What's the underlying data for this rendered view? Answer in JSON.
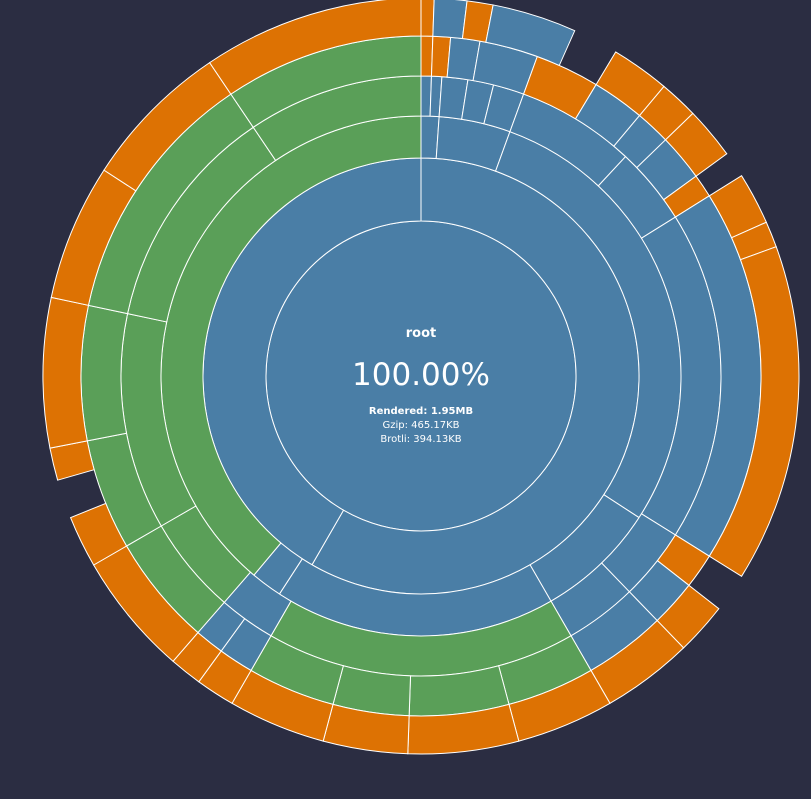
{
  "center": {
    "name": "root",
    "percentage": "100.00%",
    "rendered": "Rendered: 1.95MB",
    "gzip": "Gzip: 465.17KB",
    "brotli": "Brotli: 394.13KB"
  },
  "colors": {
    "background": "#2b2d42",
    "directory": "#4a7ea6",
    "module": "#5a9f58",
    "file": "#dd7203",
    "stroke": "#ffffff"
  },
  "chart_data": {
    "type": "sunburst",
    "unit_note": "angles in degrees clockwise from 12 o'clock",
    "ring_count": 6,
    "segments": [
      {
        "ring": 0,
        "start": 0,
        "end": 360,
        "kind": "directory"
      },
      {
        "ring": 1,
        "start": 0,
        "end": 210,
        "kind": "directory"
      },
      {
        "ring": 1,
        "start": 210,
        "end": 360,
        "kind": "directory"
      },
      {
        "ring": 2,
        "start": 0,
        "end": 4,
        "kind": "directory"
      },
      {
        "ring": 2,
        "start": 4,
        "end": 20,
        "kind": "directory"
      },
      {
        "ring": 2,
        "start": 20,
        "end": 123,
        "kind": "directory"
      },
      {
        "ring": 2,
        "start": 123,
        "end": 150,
        "kind": "directory"
      },
      {
        "ring": 2,
        "start": 150,
        "end": 213,
        "kind": "directory"
      },
      {
        "ring": 2,
        "start": 213,
        "end": 220,
        "kind": "directory"
      },
      {
        "ring": 2,
        "start": 220,
        "end": 360,
        "kind": "module"
      },
      {
        "ring": 3,
        "start": 0,
        "end": 2,
        "kind": "directory"
      },
      {
        "ring": 3,
        "start": 2,
        "end": 4,
        "kind": "directory"
      },
      {
        "ring": 3,
        "start": 4,
        "end": 9,
        "kind": "directory"
      },
      {
        "ring": 3,
        "start": 9,
        "end": 14,
        "kind": "directory"
      },
      {
        "ring": 3,
        "start": 14,
        "end": 20,
        "kind": "directory"
      },
      {
        "ring": 3,
        "start": 20,
        "end": 43,
        "kind": "directory"
      },
      {
        "ring": 3,
        "start": 43,
        "end": 58,
        "kind": "directory"
      },
      {
        "ring": 3,
        "start": 58,
        "end": 122,
        "kind": "directory"
      },
      {
        "ring": 3,
        "start": 122,
        "end": 136,
        "kind": "directory"
      },
      {
        "ring": 3,
        "start": 136,
        "end": 150,
        "kind": "directory"
      },
      {
        "ring": 3,
        "start": 150,
        "end": 210,
        "kind": "module"
      },
      {
        "ring": 3,
        "start": 210,
        "end": 221,
        "kind": "directory"
      },
      {
        "ring": 3,
        "start": 221,
        "end": 240,
        "kind": "module"
      },
      {
        "ring": 3,
        "start": 240,
        "end": 282,
        "kind": "module"
      },
      {
        "ring": 3,
        "start": 282,
        "end": 326,
        "kind": "module"
      },
      {
        "ring": 3,
        "start": 326,
        "end": 360,
        "kind": "module"
      },
      {
        "ring": 4,
        "start": 0,
        "end": 2,
        "kind": "file"
      },
      {
        "ring": 4,
        "start": 2,
        "end": 5,
        "kind": "file"
      },
      {
        "ring": 4,
        "start": 5,
        "end": 10,
        "kind": "directory"
      },
      {
        "ring": 4,
        "start": 10,
        "end": 20,
        "kind": "directory"
      },
      {
        "ring": 4,
        "start": 20,
        "end": 31,
        "kind": "file"
      },
      {
        "ring": 4,
        "start": 31,
        "end": 40,
        "kind": "directory"
      },
      {
        "ring": 4,
        "start": 40,
        "end": 46,
        "kind": "directory"
      },
      {
        "ring": 4,
        "start": 46,
        "end": 54,
        "kind": "directory"
      },
      {
        "ring": 4,
        "start": 54,
        "end": 58,
        "kind": "file"
      },
      {
        "ring": 4,
        "start": 58,
        "end": 122,
        "kind": "directory"
      },
      {
        "ring": 4,
        "start": 122,
        "end": 128,
        "kind": "file"
      },
      {
        "ring": 4,
        "start": 128,
        "end": 136,
        "kind": "directory"
      },
      {
        "ring": 4,
        "start": 136,
        "end": 150,
        "kind": "directory"
      },
      {
        "ring": 4,
        "start": 150,
        "end": 165,
        "kind": "module"
      },
      {
        "ring": 4,
        "start": 165,
        "end": 182,
        "kind": "module"
      },
      {
        "ring": 4,
        "start": 182,
        "end": 195,
        "kind": "module"
      },
      {
        "ring": 4,
        "start": 195,
        "end": 210,
        "kind": "module"
      },
      {
        "ring": 4,
        "start": 210,
        "end": 216,
        "kind": "directory"
      },
      {
        "ring": 4,
        "start": 216,
        "end": 221,
        "kind": "directory"
      },
      {
        "ring": 4,
        "start": 221,
        "end": 240,
        "kind": "module"
      },
      {
        "ring": 4,
        "start": 240,
        "end": 259,
        "kind": "module"
      },
      {
        "ring": 4,
        "start": 259,
        "end": 282,
        "kind": "module"
      },
      {
        "ring": 4,
        "start": 282,
        "end": 326,
        "kind": "module"
      },
      {
        "ring": 4,
        "start": 326,
        "end": 360,
        "kind": "module"
      },
      {
        "ring": 5,
        "start": 0,
        "end": 2,
        "kind": "file"
      },
      {
        "ring": 5,
        "start": 2,
        "end": 7,
        "kind": "directory"
      },
      {
        "ring": 5,
        "start": 7,
        "end": 11,
        "kind": "file"
      },
      {
        "ring": 5,
        "start": 11,
        "end": 24,
        "kind": "directory"
      },
      {
        "ring": 5,
        "start": 31,
        "end": 40,
        "kind": "file"
      },
      {
        "ring": 5,
        "start": 40,
        "end": 46,
        "kind": "file"
      },
      {
        "ring": 5,
        "start": 46,
        "end": 54,
        "kind": "file"
      },
      {
        "ring": 5,
        "start": 58,
        "end": 66,
        "kind": "file"
      },
      {
        "ring": 5,
        "start": 66,
        "end": 70,
        "kind": "file"
      },
      {
        "ring": 5,
        "start": 70,
        "end": 122,
        "kind": "file"
      },
      {
        "ring": 5,
        "start": 128,
        "end": 136,
        "kind": "file"
      },
      {
        "ring": 5,
        "start": 136,
        "end": 150,
        "kind": "file"
      },
      {
        "ring": 5,
        "start": 150,
        "end": 165,
        "kind": "file"
      },
      {
        "ring": 5,
        "start": 165,
        "end": 182,
        "kind": "file"
      },
      {
        "ring": 5,
        "start": 182,
        "end": 195,
        "kind": "file"
      },
      {
        "ring": 5,
        "start": 195,
        "end": 210,
        "kind": "file"
      },
      {
        "ring": 5,
        "start": 210,
        "end": 216,
        "kind": "file"
      },
      {
        "ring": 5,
        "start": 216,
        "end": 221,
        "kind": "file"
      },
      {
        "ring": 5,
        "start": 221,
        "end": 240,
        "kind": "file"
      },
      {
        "ring": 5,
        "start": 240,
        "end": 248,
        "kind": "file"
      },
      {
        "ring": 5,
        "start": 254,
        "end": 259,
        "kind": "file"
      },
      {
        "ring": 5,
        "start": 259,
        "end": 282,
        "kind": "file"
      },
      {
        "ring": 5,
        "start": 282,
        "end": 303,
        "kind": "file"
      },
      {
        "ring": 5,
        "start": 303,
        "end": 326,
        "kind": "file"
      },
      {
        "ring": 5,
        "start": 326,
        "end": 360,
        "kind": "file"
      }
    ]
  }
}
